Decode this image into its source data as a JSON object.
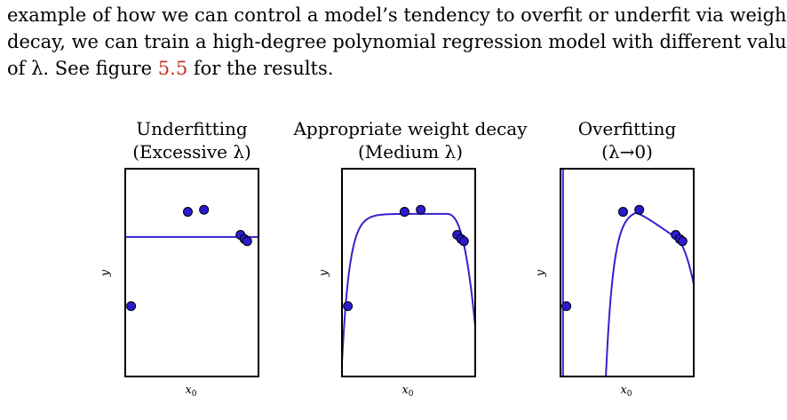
{
  "paragraph": {
    "line1": "example of how we can control a model’s tendency to overfit or underfit via weight",
    "line2": "decay, we can train a high-degree polynomial regression model with different values",
    "line3_pre": "of λ.  See figure ",
    "line3_ref": "5.5",
    "line3_post": " for the results."
  },
  "colors": {
    "curve": "#3322cc",
    "point_fill": "#2a1bd0",
    "point_stroke": "#000000",
    "ref": "#c0392b"
  },
  "chart_data": [
    {
      "type": "scatter",
      "title_line1": "Underfitting",
      "title_line2": "(Excessive λ)",
      "xlabel": "x",
      "xlabel_sub": "0",
      "ylabel": "y",
      "fit": "constant",
      "points": [
        [
          0.05,
          0.34
        ],
        [
          0.47,
          0.79
        ],
        [
          0.59,
          0.8
        ],
        [
          0.86,
          0.68
        ],
        [
          0.89,
          0.66
        ],
        [
          0.91,
          0.65
        ]
      ],
      "curve_desc": "horizontal line at y ≈ 0.67"
    },
    {
      "type": "scatter",
      "title_line1": "Appropriate weight decay",
      "title_line2": "(Medium λ)",
      "xlabel": "x",
      "xlabel_sub": "0",
      "ylabel": "y",
      "fit": "smooth",
      "points": [
        [
          0.05,
          0.34
        ],
        [
          0.47,
          0.79
        ],
        [
          0.59,
          0.8
        ],
        [
          0.86,
          0.68
        ],
        [
          0.89,
          0.66
        ],
        [
          0.91,
          0.65
        ]
      ],
      "curve_desc": "rises from bottom-left, plateaus near y ≈ 0.78, falls off at right"
    },
    {
      "type": "scatter",
      "title_line1": "Overfitting",
      "title_line2": "(λ→0)",
      "xlabel": "x",
      "xlabel_sub": "0",
      "ylabel": "y",
      "fit": "wild",
      "points": [
        [
          0.05,
          0.34
        ],
        [
          0.47,
          0.79
        ],
        [
          0.59,
          0.8
        ],
        [
          0.86,
          0.68
        ],
        [
          0.89,
          0.66
        ],
        [
          0.91,
          0.65
        ]
      ],
      "curve_desc": "vertical spike at left edge, dips below plot, rises steeply through middle points"
    }
  ]
}
